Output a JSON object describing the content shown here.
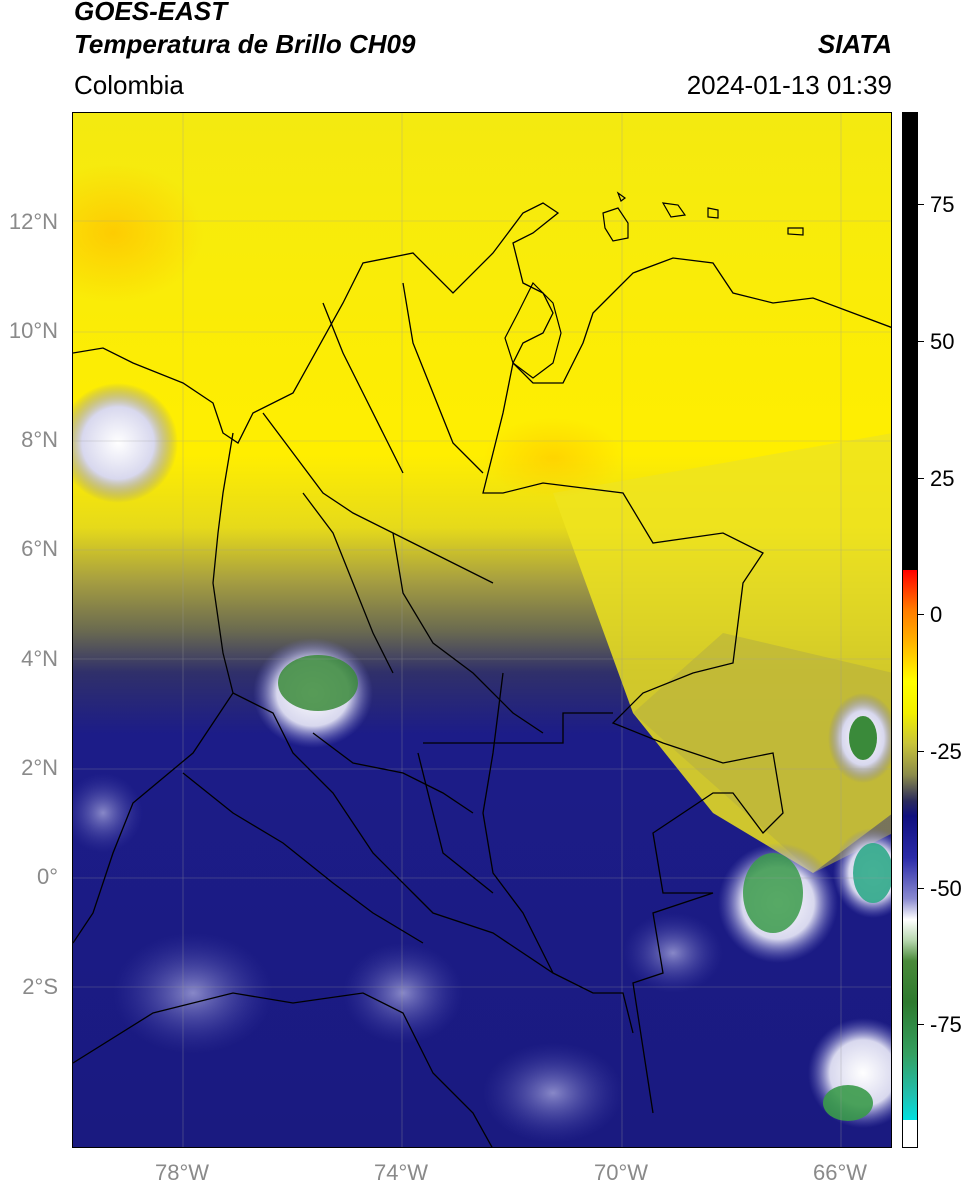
{
  "header": {
    "satellite": "GOES-EAST",
    "product": "Temperatura de Brillo CH09",
    "organization": "SIATA",
    "region": "Colombia",
    "datetime": "2024-01-13 01:39"
  },
  "map": {
    "lat_labels": [
      "12°N",
      "10°N",
      "8°N",
      "6°N",
      "4°N",
      "2°N",
      "0°",
      "2°S"
    ],
    "lon_labels": [
      "78°W",
      "74°W",
      "70°W",
      "66°W"
    ],
    "extent": {
      "lon_min": -80,
      "lon_max": -65,
      "lat_min": -5,
      "lat_max": 14
    }
  },
  "colorbar": {
    "tick_labels": [
      "75",
      "50",
      "25",
      "0",
      "-25",
      "-50",
      "-75"
    ],
    "tick_values": [
      75,
      50,
      25,
      0,
      -25,
      -50,
      -75
    ],
    "range": [
      -95,
      90
    ],
    "colors": {
      "warm": "#ffff00",
      "mid": "#8c8c4a",
      "cold": "#101080",
      "very_cold": "#ffffff",
      "coldest": "#2e7a2e",
      "extreme": "#00e0e0",
      "saturated": "#000000",
      "hot_red": "#ff0000"
    }
  }
}
